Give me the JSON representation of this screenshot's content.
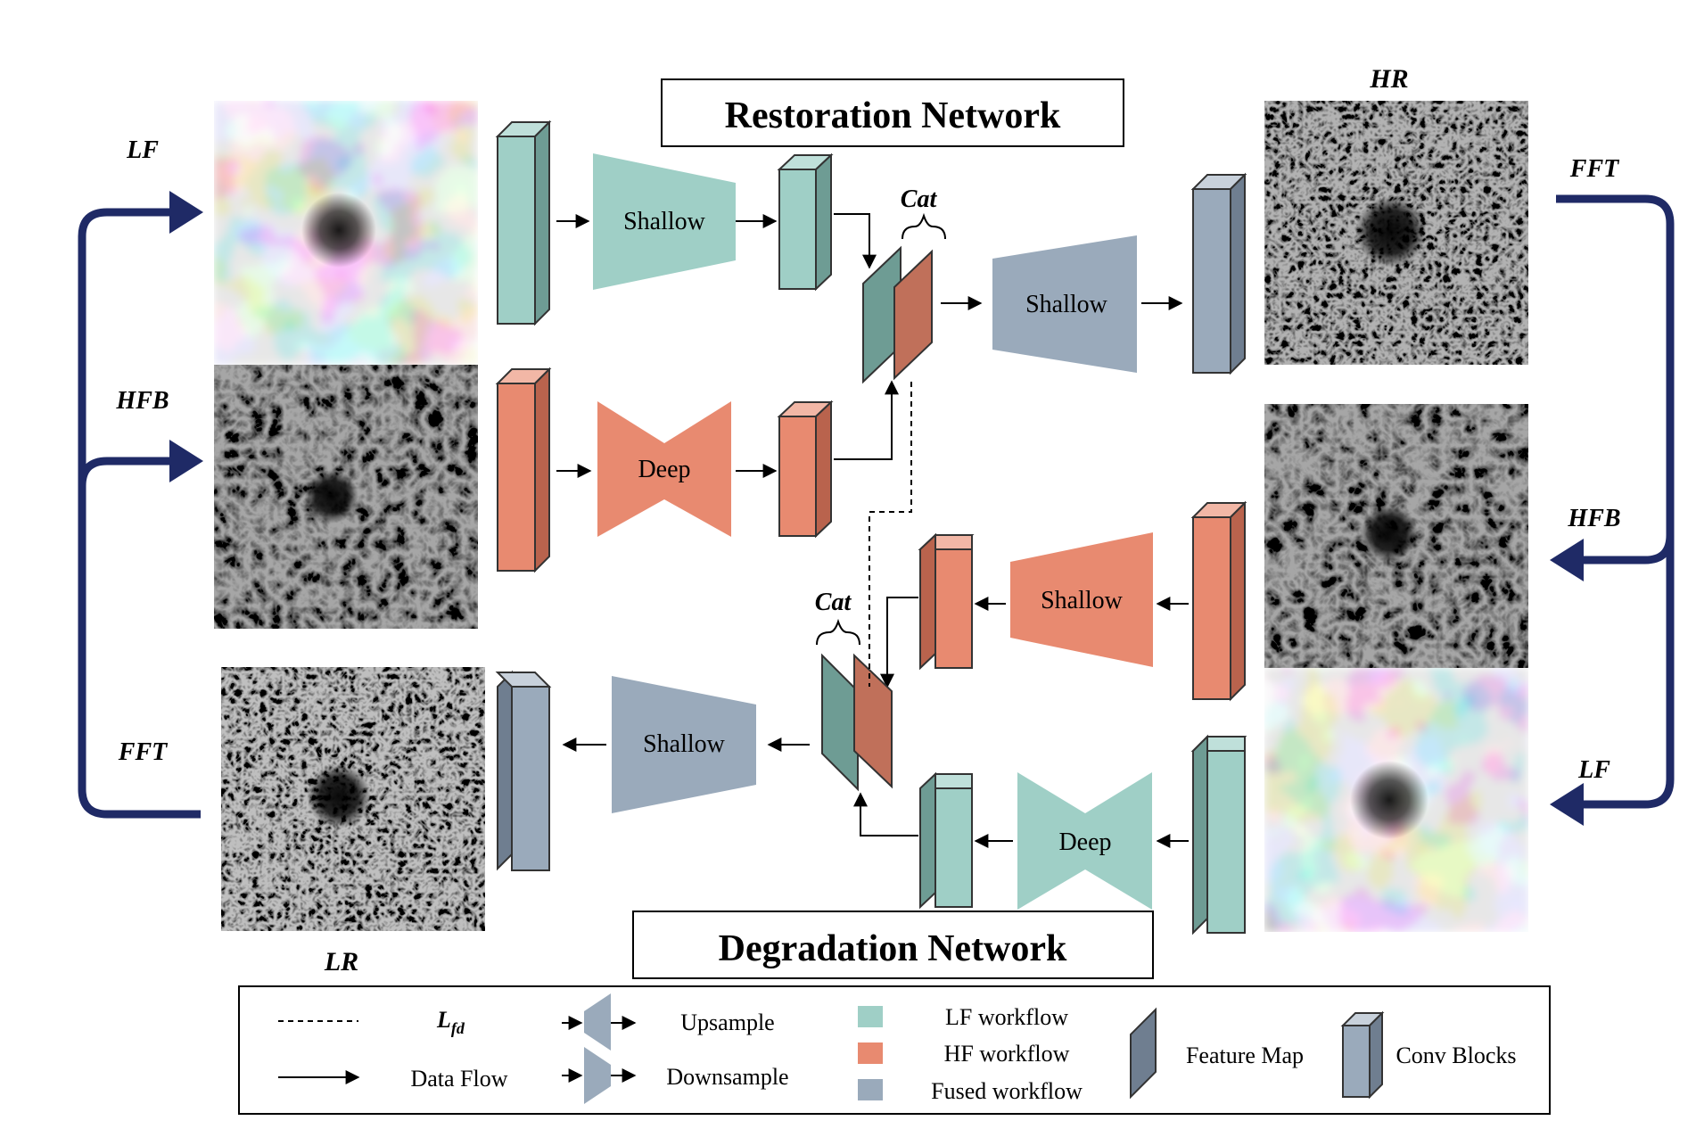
{
  "titles": {
    "restoration": "Restoration Network",
    "degradation": "Degradation Network"
  },
  "image_labels": {
    "lf_left": "LF",
    "hfb_left": "HFB",
    "fft_left": "FFT",
    "lr": "LR",
    "hr": "HR",
    "fft_right": "FFT",
    "hfb_right": "HFB",
    "lf_right": "LF"
  },
  "cat_labels": {
    "top": "Cat",
    "bottom": "Cat"
  },
  "blocks": {
    "shallow_top": "Shallow",
    "deep_top": "Deep",
    "shallow_fused_top": "Shallow",
    "shallow_hf_bottom": "Shallow",
    "deep_lf_bottom": "Deep",
    "shallow_fused_bottom": "Shallow"
  },
  "legend": {
    "loss_main": "L",
    "loss_sub": "fd",
    "data_flow": "Data Flow",
    "upsample": "Upsample",
    "downsample": "Downsample",
    "lf_workflow": "LF workflow",
    "hf_workflow": "HF workflow",
    "fused_workflow": "Fused workflow",
    "feature_map": "Feature Map",
    "conv_blocks": "Conv Blocks"
  },
  "colors": {
    "lf": "#9fcfc6",
    "hf": "#e88a70",
    "fused": "#9aaabb",
    "navy": "#1f2a66"
  }
}
